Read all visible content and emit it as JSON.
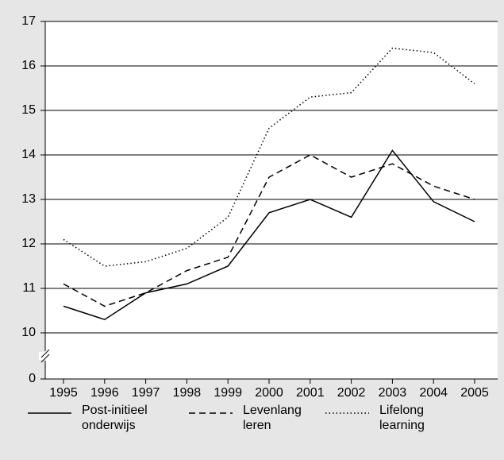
{
  "chart_data": {
    "type": "line",
    "categories": [
      "1995",
      "1996",
      "1997",
      "1998",
      "1999",
      "2000",
      "2001",
      "2002",
      "2003",
      "2004",
      "2005"
    ],
    "series": [
      {
        "name": "Post-initieel onderwijs",
        "color": "#000000",
        "dash": "solid",
        "values": [
          10.6,
          10.3,
          10.9,
          11.1,
          11.5,
          12.7,
          13.0,
          12.6,
          14.1,
          12.95,
          12.5
        ]
      },
      {
        "name": "Levenlang leren",
        "color": "#000000",
        "dash": "dashed",
        "values": [
          11.1,
          10.6,
          10.9,
          11.4,
          11.7,
          13.5,
          14.0,
          13.5,
          13.8,
          13.3,
          13.0
        ]
      },
      {
        "name": "Lifelong learning",
        "color": "#000000",
        "dash": "dotted",
        "values": [
          12.1,
          11.5,
          11.6,
          11.9,
          12.6,
          14.6,
          15.3,
          15.4,
          16.4,
          16.3,
          15.6
        ]
      }
    ],
    "ylim": [
      0,
      17
    ],
    "yticks": [
      0,
      10,
      11,
      12,
      13,
      14,
      15,
      16,
      17
    ],
    "y_axis_break": true,
    "grid": true
  }
}
